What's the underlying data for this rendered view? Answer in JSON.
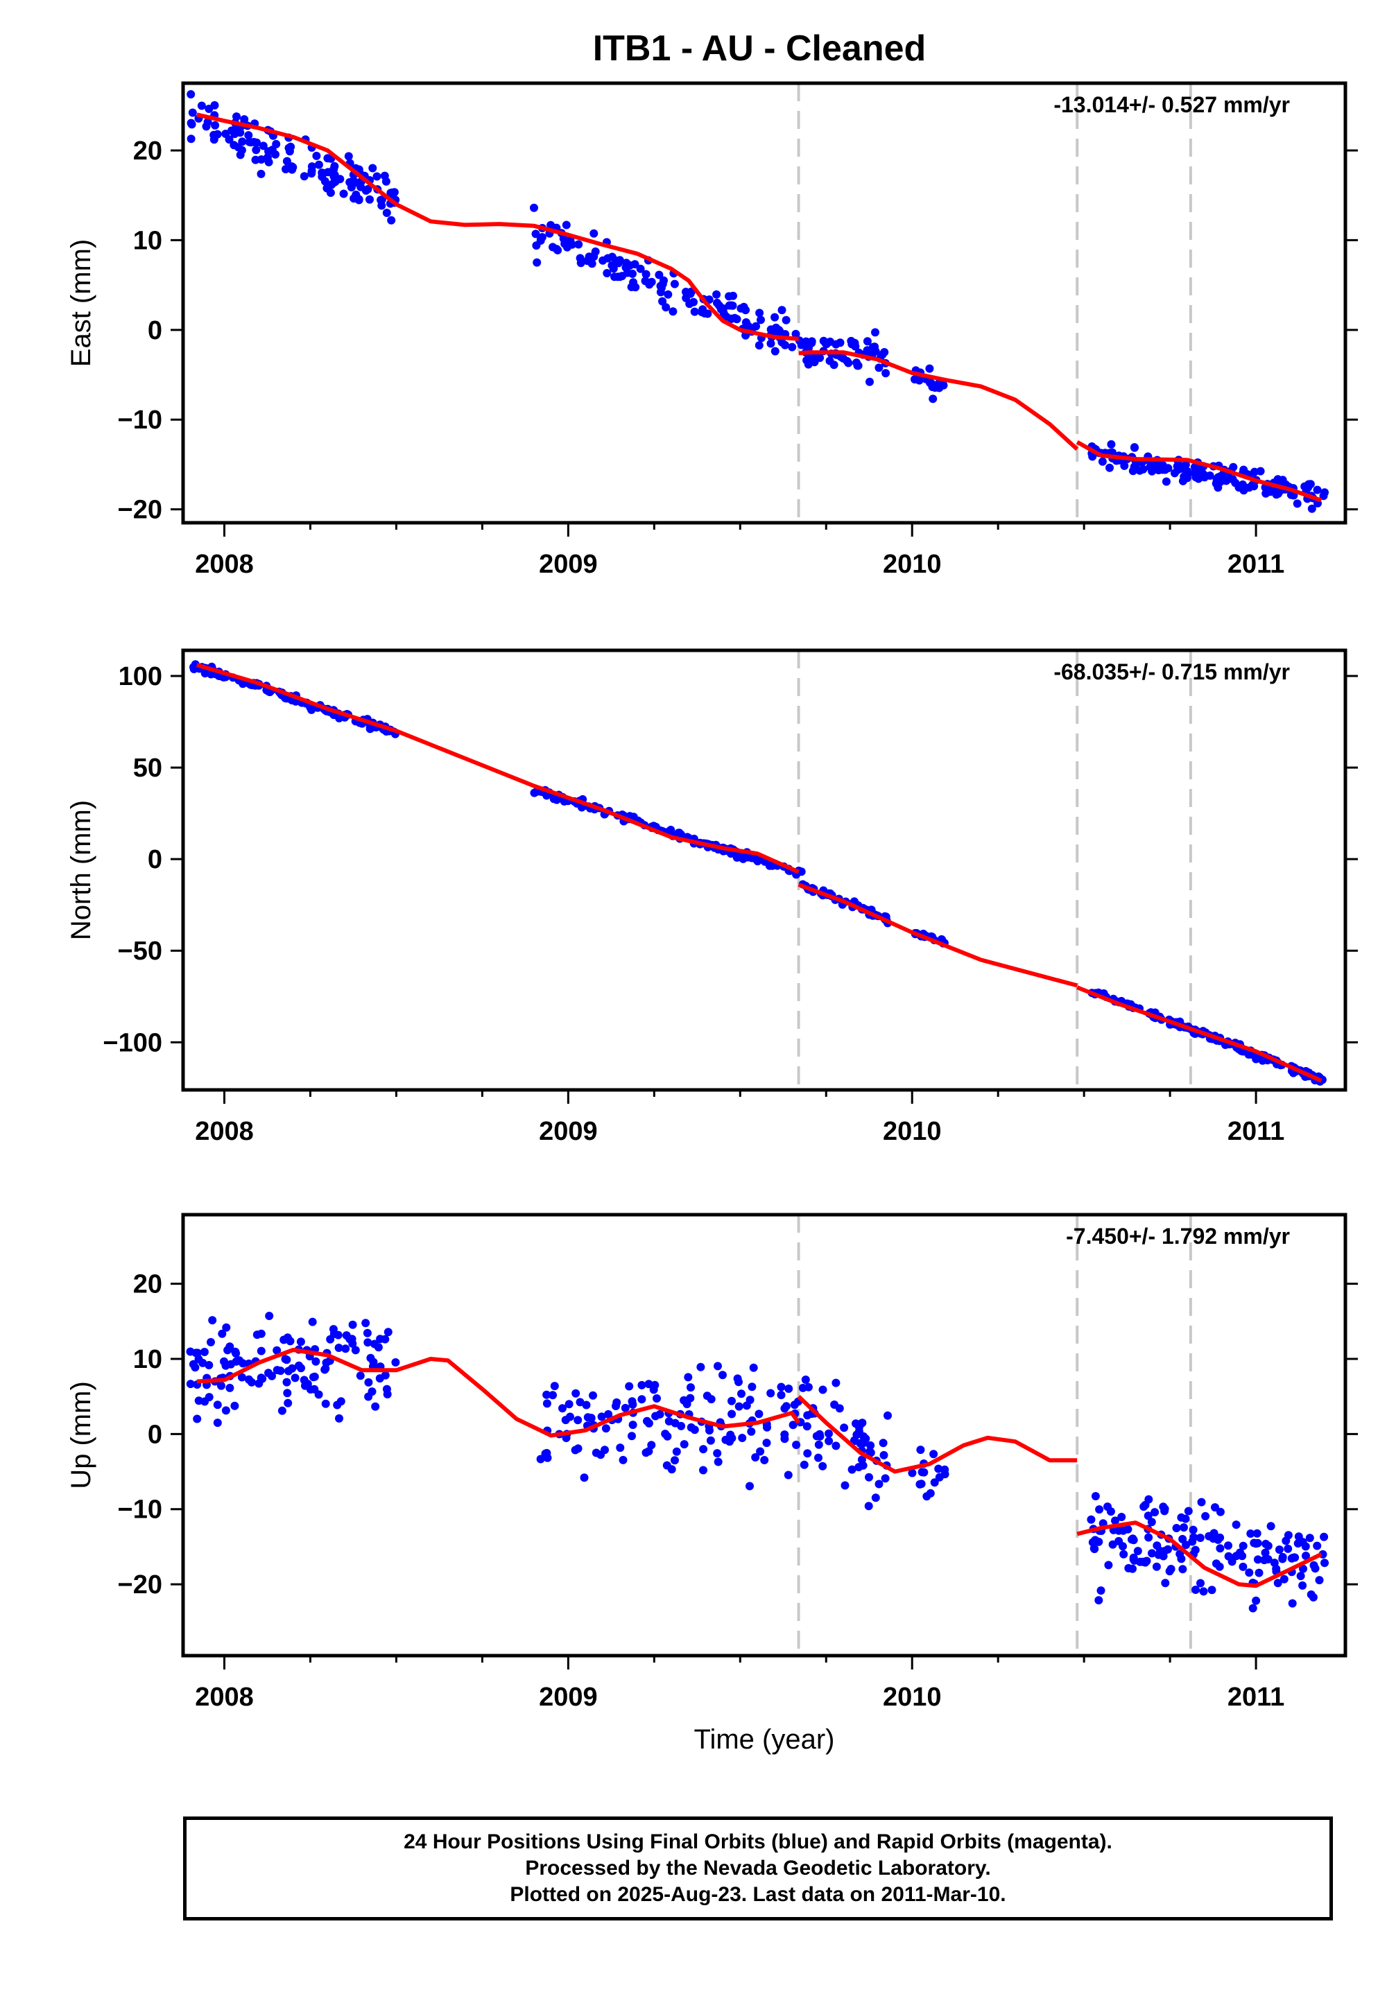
{
  "page": {
    "title": "ITB1  - AU - Cleaned"
  },
  "footer": {
    "line1": "24 Hour Positions Using Final Orbits (blue) and Rapid Orbits (magenta).",
    "line2": "Processed by the Nevada Geodetic Laboratory.",
    "line3": "Plotted on 2025-Aug-23. Last data on 2011-Mar-10."
  },
  "colors": {
    "points": "#0000ff",
    "model": "#ff0000",
    "breaks": "#c8c8c8",
    "axis": "#000000"
  },
  "chart_data": [
    {
      "type": "scatter",
      "component": "east",
      "ylabel": "East (mm)",
      "xlabel": "",
      "rate_label": "-13.014+/- 0.527 mm/yr",
      "xlim": [
        2007.88,
        2011.26
      ],
      "ylim": [
        -21.5,
        27.5
      ],
      "x_ticks": [
        2008,
        2009,
        2010,
        2011
      ],
      "y_ticks": [
        20,
        10,
        0,
        -10,
        -20
      ],
      "y_tick_labels": [
        "20",
        "10",
        "0",
        "−10",
        "−20"
      ],
      "breaks": [
        2009.67,
        2010.48,
        2010.81
      ],
      "model_segments": [
        [
          [
            2007.92,
            24.0
          ],
          [
            2008.0,
            23.3
          ],
          [
            2008.1,
            22.5
          ],
          [
            2008.2,
            21.5
          ],
          [
            2008.3,
            20.0
          ],
          [
            2008.4,
            17.0
          ],
          [
            2008.5,
            14.0
          ],
          [
            2008.6,
            12.1
          ],
          [
            2008.7,
            11.7
          ],
          [
            2008.8,
            11.8
          ],
          [
            2008.9,
            11.6
          ],
          [
            2009.0,
            10.6
          ],
          [
            2009.1,
            9.5
          ],
          [
            2009.2,
            8.5
          ],
          [
            2009.3,
            6.8
          ],
          [
            2009.35,
            5.5
          ],
          [
            2009.4,
            3.0
          ],
          [
            2009.45,
            1.0
          ],
          [
            2009.5,
            0.0
          ],
          [
            2009.6,
            -0.8
          ],
          [
            2009.67,
            -1.0
          ]
        ],
        [
          [
            2009.67,
            -2.6
          ],
          [
            2009.7,
            -2.5
          ],
          [
            2009.8,
            -2.5
          ],
          [
            2009.9,
            -3.3
          ],
          [
            2010.0,
            -4.8
          ],
          [
            2010.1,
            -5.6
          ],
          [
            2010.2,
            -6.3
          ],
          [
            2010.3,
            -7.8
          ],
          [
            2010.4,
            -10.5
          ],
          [
            2010.48,
            -13.3
          ]
        ],
        [
          [
            2010.48,
            -12.5
          ],
          [
            2010.55,
            -14.0
          ],
          [
            2010.65,
            -14.4
          ],
          [
            2010.8,
            -14.5
          ],
          [
            2010.9,
            -15.5
          ],
          [
            2011.0,
            -16.8
          ],
          [
            2011.1,
            -17.8
          ],
          [
            2011.19,
            -19.0
          ]
        ]
      ],
      "point_groups": [
        {
          "x": [
            2007.9,
            2008.5
          ],
          "y_center": [
            23.5,
            15.0
          ],
          "spread": 2.2,
          "count": 130
        },
        {
          "x": [
            2008.9,
            2009.68
          ],
          "y_center": [
            11.0,
            -1.5
          ],
          "spread": 1.6,
          "count": 140
        },
        {
          "x": [
            2009.68,
            2009.93
          ],
          "y_center": [
            -2.0,
            -3.5
          ],
          "spread": 1.8,
          "count": 55
        },
        {
          "x": [
            2010.0,
            2010.1
          ],
          "y_center": [
            -5.3,
            -5.8
          ],
          "spread": 1.2,
          "count": 15
        },
        {
          "x": [
            2010.52,
            2011.2
          ],
          "y_center": [
            -13.8,
            -18.5
          ],
          "spread": 1.1,
          "count": 160
        }
      ]
    },
    {
      "type": "scatter",
      "component": "north",
      "ylabel": "North (mm)",
      "xlabel": "",
      "rate_label": "-68.035+/- 0.715 mm/yr",
      "xlim": [
        2007.88,
        2011.26
      ],
      "ylim": [
        -126,
        114
      ],
      "x_ticks": [
        2008,
        2009,
        2010,
        2011
      ],
      "y_ticks": [
        100,
        50,
        0,
        -50,
        -100
      ],
      "y_tick_labels": [
        "100",
        "50",
        "0",
        "−50",
        "−100"
      ],
      "breaks": [
        2009.67,
        2010.48,
        2010.81
      ],
      "model_segments": [
        [
          [
            2007.92,
            106
          ],
          [
            2008.1,
            96
          ],
          [
            2008.3,
            82
          ],
          [
            2008.5,
            70
          ],
          [
            2008.7,
            55
          ],
          [
            2008.9,
            40
          ],
          [
            2009.1,
            27
          ],
          [
            2009.3,
            12
          ],
          [
            2009.45,
            6
          ],
          [
            2009.55,
            3
          ],
          [
            2009.67,
            -7
          ]
        ],
        [
          [
            2009.67,
            -14
          ],
          [
            2009.8,
            -23
          ],
          [
            2010.0,
            -40
          ],
          [
            2010.2,
            -55
          ],
          [
            2010.4,
            -65
          ],
          [
            2010.48,
            -69
          ]
        ],
        [
          [
            2010.48,
            -70
          ],
          [
            2010.6,
            -79
          ],
          [
            2010.8,
            -92
          ],
          [
            2011.0,
            -105
          ],
          [
            2011.19,
            -121
          ]
        ]
      ],
      "point_groups": [
        {
          "x": [
            2007.9,
            2008.5
          ],
          "y_center": [
            106,
            69
          ],
          "spread": 1.6,
          "count": 130
        },
        {
          "x": [
            2008.9,
            2009.68
          ],
          "y_center": [
            38,
            -8
          ],
          "spread": 1.6,
          "count": 140
        },
        {
          "x": [
            2009.68,
            2009.93
          ],
          "y_center": [
            -14,
            -33
          ],
          "spread": 1.6,
          "count": 55
        },
        {
          "x": [
            2010.0,
            2010.1
          ],
          "y_center": [
            -40,
            -45
          ],
          "spread": 1.4,
          "count": 15
        },
        {
          "x": [
            2010.52,
            2011.2
          ],
          "y_center": [
            -72,
            -121
          ],
          "spread": 1.5,
          "count": 160
        }
      ]
    },
    {
      "type": "scatter",
      "component": "up",
      "ylabel": "Up (mm)",
      "xlabel": "Time (year)",
      "rate_label": "-7.450+/- 1.792 mm/yr",
      "xlim": [
        2007.88,
        2011.26
      ],
      "ylim": [
        -29.5,
        29.2
      ],
      "x_ticks": [
        2008,
        2009,
        2010,
        2011
      ],
      "y_ticks": [
        20,
        10,
        0,
        -10,
        -20
      ],
      "y_tick_labels": [
        "20",
        "10",
        "0",
        "−10",
        "−20"
      ],
      "breaks": [
        2009.67,
        2010.48,
        2010.81
      ],
      "model_segments": [
        [
          [
            2007.92,
            7.0
          ],
          [
            2008.0,
            7.2
          ],
          [
            2008.1,
            9.5
          ],
          [
            2008.2,
            11.2
          ],
          [
            2008.3,
            10.5
          ],
          [
            2008.4,
            8.5
          ],
          [
            2008.5,
            8.5
          ],
          [
            2008.6,
            10.0
          ],
          [
            2008.65,
            9.8
          ],
          [
            2008.75,
            6.0
          ],
          [
            2008.85,
            2.0
          ],
          [
            2008.95,
            -0.2
          ],
          [
            2009.05,
            0.5
          ],
          [
            2009.15,
            2.5
          ],
          [
            2009.25,
            3.7
          ],
          [
            2009.35,
            2.2
          ],
          [
            2009.45,
            1.0
          ],
          [
            2009.55,
            1.5
          ],
          [
            2009.65,
            2.8
          ],
          [
            2009.67,
            1.5
          ]
        ],
        [
          [
            2009.67,
            5.0
          ],
          [
            2009.75,
            1.5
          ],
          [
            2009.85,
            -2.5
          ],
          [
            2009.95,
            -5.0
          ],
          [
            2010.05,
            -4.0
          ],
          [
            2010.15,
            -1.5
          ],
          [
            2010.22,
            -0.5
          ],
          [
            2010.3,
            -1.0
          ],
          [
            2010.4,
            -3.5
          ],
          [
            2010.48,
            -3.5
          ]
        ],
        [
          [
            2010.48,
            -13.3
          ],
          [
            2010.55,
            -12.5
          ],
          [
            2010.65,
            -11.8
          ],
          [
            2010.75,
            -14.0
          ],
          [
            2010.85,
            -17.8
          ],
          [
            2010.95,
            -20.0
          ],
          [
            2011.0,
            -20.2
          ],
          [
            2011.1,
            -18.0
          ],
          [
            2011.19,
            -16.0
          ]
        ]
      ],
      "point_groups": [
        {
          "x": [
            2007.9,
            2008.5
          ],
          "y_center": [
            8.0,
            9.0
          ],
          "spread": 5.5,
          "count": 130
        },
        {
          "x": [
            2008.9,
            2009.68
          ],
          "y_center": [
            0.5,
            2.0
          ],
          "spread": 5.5,
          "count": 140
        },
        {
          "x": [
            2009.68,
            2009.93
          ],
          "y_center": [
            3.0,
            -4.0
          ],
          "spread": 5.0,
          "count": 55
        },
        {
          "x": [
            2010.0,
            2010.1
          ],
          "y_center": [
            -5.0,
            -7.0
          ],
          "spread": 4.0,
          "count": 15
        },
        {
          "x": [
            2010.52,
            2011.2
          ],
          "y_center": [
            -13.0,
            -17.5
          ],
          "spread": 4.5,
          "count": 160
        }
      ]
    }
  ]
}
